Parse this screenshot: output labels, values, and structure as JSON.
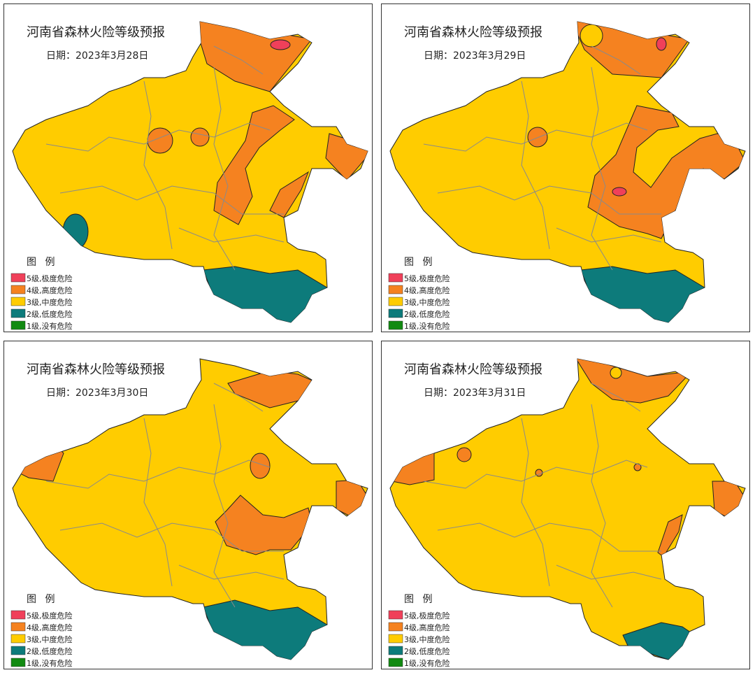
{
  "panels": [
    {
      "title": "河南省森林火险等级预报",
      "date": "日期：2023年3月28日",
      "legend_title": "图 例",
      "legend": [
        {
          "label": "5级,极度危险",
          "color": "#f0405a"
        },
        {
          "label": "4级,高度危险",
          "color": "#f58220"
        },
        {
          "label": "3级,中度危险",
          "color": "#ffcc00"
        },
        {
          "label": "2级,低度危险",
          "color": "#0d7b7b"
        },
        {
          "label": "1级,没有危险",
          "color": "#118a11"
        }
      ]
    },
    {
      "title": "河南省森林火险等级预报",
      "date": "日期：2023年3月29日",
      "legend_title": "图 例",
      "legend": [
        {
          "label": "5级,极度危险",
          "color": "#f0405a"
        },
        {
          "label": "4级,高度危险",
          "color": "#f58220"
        },
        {
          "label": "3级,中度危险",
          "color": "#ffcc00"
        },
        {
          "label": "2级,低度危险",
          "color": "#0d7b7b"
        },
        {
          "label": "1级,没有危险",
          "color": "#118a11"
        }
      ]
    },
    {
      "title": "河南省森林火险等级预报",
      "date": "日期：2023年3月30日",
      "legend_title": "图 例",
      "legend": [
        {
          "label": "5级,极度危险",
          "color": "#f0405a"
        },
        {
          "label": "4级,高度危险",
          "color": "#f58220"
        },
        {
          "label": "3级,中度危险",
          "color": "#ffcc00"
        },
        {
          "label": "2级,低度危险",
          "color": "#0d7b7b"
        },
        {
          "label": "1级,没有危险",
          "color": "#118a11"
        }
      ]
    },
    {
      "title": "河南省森林火险等级预报",
      "date": "日期：2023年3月31日",
      "legend_title": "图 例",
      "legend": [
        {
          "label": "5级,极度危险",
          "color": "#f0405a"
        },
        {
          "label": "4级,高度危险",
          "color": "#f58220"
        },
        {
          "label": "3级,中度危险",
          "color": "#ffcc00"
        },
        {
          "label": "2级,低度危险",
          "color": "#0d7b7b"
        },
        {
          "label": "1级,没有危险",
          "color": "#118a11"
        }
      ]
    }
  ]
}
